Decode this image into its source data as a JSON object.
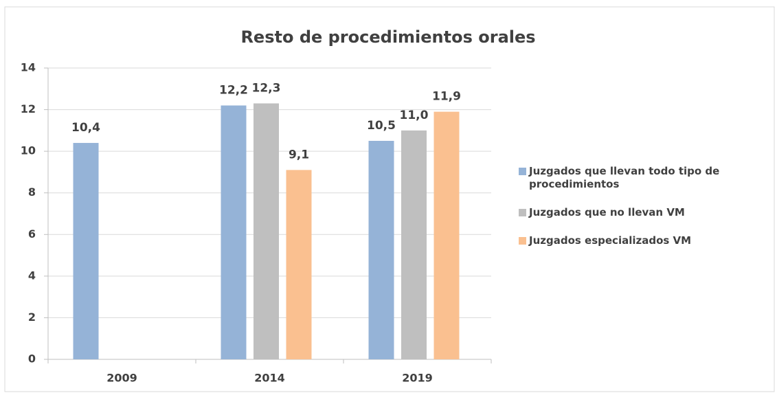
{
  "chart_data": {
    "type": "bar",
    "title": "Resto de procedimientos orales",
    "categories": [
      "2009",
      "2014",
      "2019"
    ],
    "series": [
      {
        "name": "Juzgados que llevan todo tipo de procedimientos",
        "color": "#95b3d7",
        "values": [
          10.4,
          12.2,
          10.5
        ],
        "value_labels": [
          "10,4",
          "12,2",
          "10,5"
        ]
      },
      {
        "name": "Juzgados que no llevan VM",
        "color": "#bfbfbf",
        "values": [
          null,
          12.3,
          11.0
        ],
        "value_labels": [
          null,
          "12,3",
          "11,0"
        ]
      },
      {
        "name": "Juzgados especializados VM",
        "color": "#fac090",
        "values": [
          null,
          9.1,
          11.9
        ],
        "value_labels": [
          null,
          "9,1",
          "11,9"
        ]
      }
    ],
    "ylim": [
      0,
      14
    ],
    "yticks": [
      0,
      2,
      4,
      6,
      8,
      10,
      12,
      14
    ],
    "grid": true,
    "legend": "right"
  }
}
